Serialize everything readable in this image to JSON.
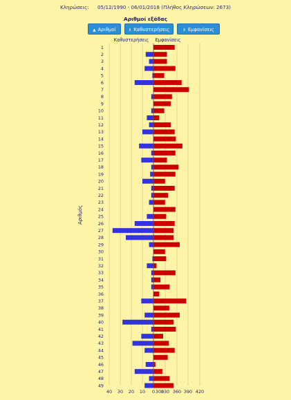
{
  "header": {
    "label": "Κληρώσεις:",
    "range": "05/12/1990 - 06/01/2018",
    "count_note": "(Πλήθος Κληρώσεων: 2673)"
  },
  "subtitle": "Αριθμοί εξάδας",
  "buttons": [
    {
      "label": "Αριθμοί",
      "arrow": "▲"
    },
    {
      "label": "Καθυστερήσεις",
      "arrow": "⇕"
    },
    {
      "label": "Εμφανίσεις",
      "arrow": "⇕"
    }
  ],
  "colors": {
    "delays": "#3333dd",
    "appearances": "#cc0000",
    "background": "#fef4a8"
  },
  "chart_data": {
    "type": "bar",
    "orientation": "horizontal-diverging",
    "column_headers": {
      "left": "Καθυστερήσεις",
      "right": "Εμφανίσεις"
    },
    "ylabel": "Αριθμός",
    "left_ticks": [
      "40",
      "30",
      "20",
      "10",
      "0"
    ],
    "right_ticks": [
      "300",
      "330",
      "360",
      "390",
      "420"
    ],
    "left_range": [
      0,
      40
    ],
    "right_range": [
      300,
      420
    ],
    "categories": [
      "1",
      "2",
      "3",
      "4",
      "5",
      "6",
      "7",
      "8",
      "9",
      "10",
      "11",
      "12",
      "13",
      "14",
      "15",
      "16",
      "17",
      "18",
      "19",
      "20",
      "21",
      "22",
      "23",
      "24",
      "25",
      "26",
      "27",
      "28",
      "29",
      "30",
      "31",
      "32",
      "33",
      "34",
      "35",
      "36",
      "37",
      "38",
      "39",
      "40",
      "41",
      "42",
      "43",
      "44",
      "45",
      "46",
      "47",
      "48",
      "49"
    ],
    "series": [
      {
        "name": "Καθυστερήσεις",
        "values": [
          0,
          7,
          4,
          8,
          1,
          17,
          0,
          2,
          0,
          2,
          6,
          4,
          10,
          0,
          13,
          2,
          11,
          2,
          3,
          10,
          2,
          2,
          4,
          0,
          6,
          17,
          37,
          25,
          4,
          0,
          1,
          6,
          2,
          2,
          2,
          0,
          11,
          0,
          8,
          28,
          2,
          11,
          19,
          8,
          0,
          7,
          17,
          4,
          8
        ]
      },
      {
        "name": "Εμφανίσεις",
        "values": [
          355,
          335,
          335,
          357,
          328,
          373,
          392,
          348,
          345,
          328,
          315,
          345,
          355,
          358,
          375,
          357,
          335,
          365,
          357,
          330,
          355,
          338,
          330,
          357,
          333,
          355,
          352,
          352,
          368,
          330,
          333,
          308,
          357,
          318,
          342,
          315,
          385,
          341,
          368,
          352,
          358,
          325,
          340,
          355,
          337,
          305,
          323,
          342,
          352
        ]
      }
    ]
  }
}
